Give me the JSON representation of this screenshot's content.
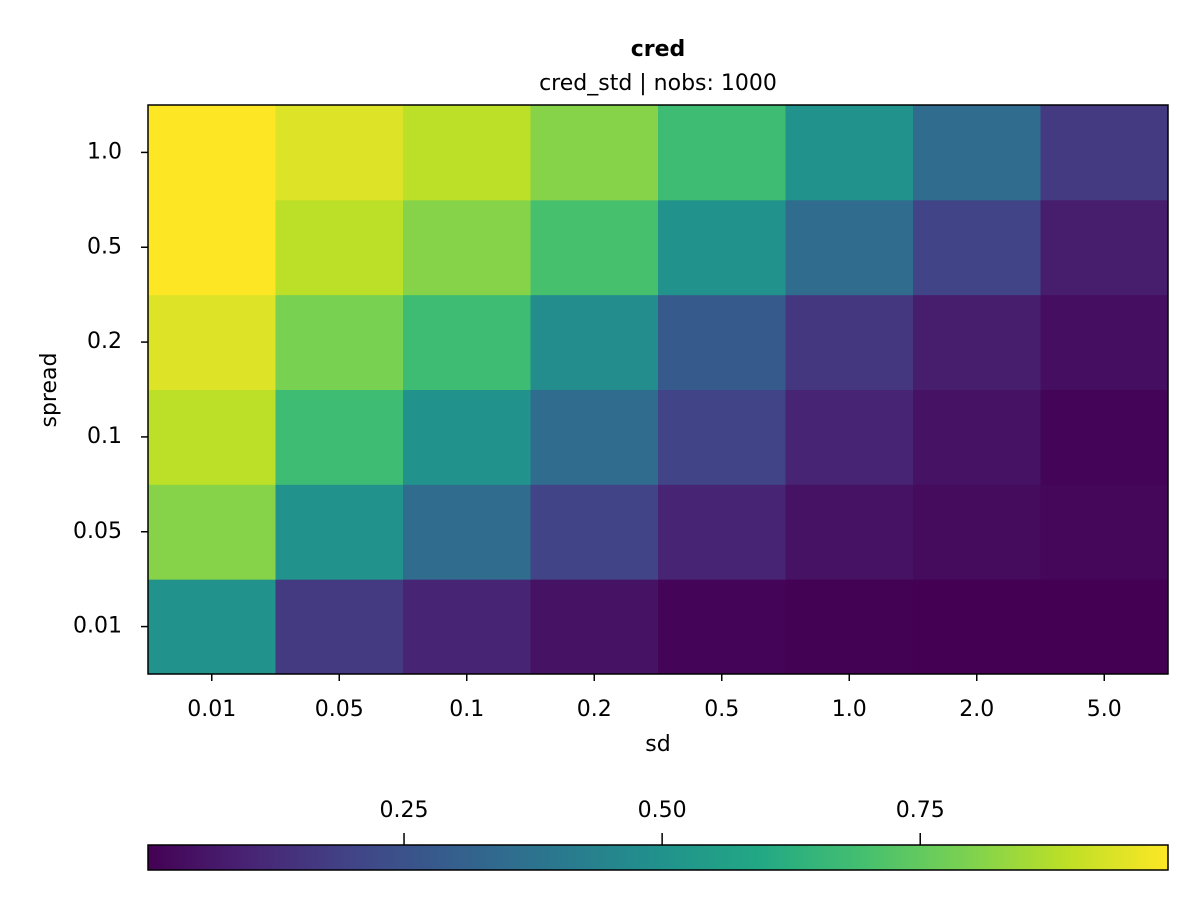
{
  "chart_data": {
    "type": "heatmap",
    "title": "cred",
    "subtitle": "cred_std | nobs: 1000",
    "x_label": "sd",
    "y_label": "spread",
    "x_categories": [
      "0.01",
      "0.05",
      "0.1",
      "0.2",
      "0.5",
      "1.0",
      "2.0",
      "5.0"
    ],
    "y_categories": [
      "0.01",
      "0.05",
      "0.1",
      "0.2",
      "0.5",
      "1.0"
    ],
    "values": [
      [
        0.5,
        0.17,
        0.1,
        0.05,
        0.01,
        0.005,
        0.003,
        0.002
      ],
      [
        0.81,
        0.5,
        0.35,
        0.2,
        0.1,
        0.05,
        0.03,
        0.02
      ],
      [
        0.89,
        0.68,
        0.5,
        0.35,
        0.2,
        0.1,
        0.05,
        0.01
      ],
      [
        0.94,
        0.79,
        0.68,
        0.48,
        0.28,
        0.16,
        0.08,
        0.04
      ],
      [
        0.99,
        0.89,
        0.81,
        0.7,
        0.5,
        0.35,
        0.2,
        0.08
      ],
      [
        0.99,
        0.94,
        0.89,
        0.81,
        0.68,
        0.5,
        0.35,
        0.17
      ]
    ],
    "colormap": "viridis",
    "colorbar": {
      "lim": [
        0.002,
        0.99
      ],
      "ticks": [
        0.25,
        {
          "value": 0.5,
          "label": "0.50"
        },
        0.75
      ],
      "position": "bottom"
    }
  }
}
